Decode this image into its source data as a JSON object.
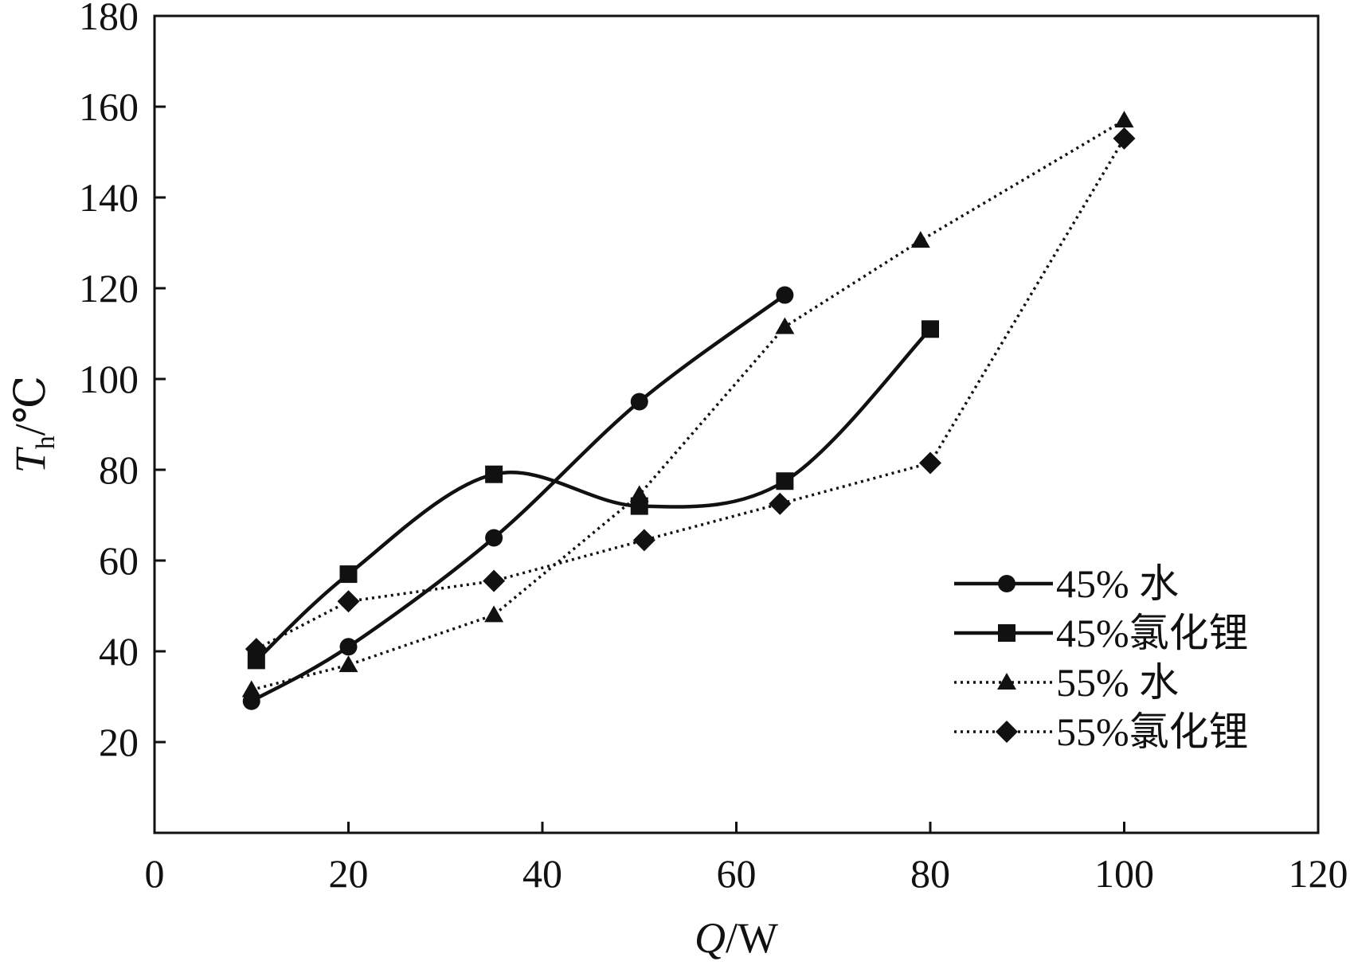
{
  "chart_data": {
    "type": "line",
    "xlabel": {
      "var": "Q",
      "unit": "/W"
    },
    "ylabel": {
      "var": "T",
      "sub": "h",
      "unit": "/℃"
    },
    "xlim": [
      0,
      120
    ],
    "ylim": [
      0,
      180
    ],
    "x_ticks": [
      0,
      20,
      40,
      60,
      80,
      100,
      120
    ],
    "y_ticks": [
      20,
      40,
      60,
      80,
      100,
      120,
      140,
      160,
      180
    ],
    "grid": false,
    "legend_position": "right",
    "series": [
      {
        "name": "45% 水",
        "marker": "circle",
        "line": "solid",
        "smooth": true,
        "x": [
          10,
          20,
          35,
          50,
          65
        ],
        "y": [
          29,
          41,
          65,
          95,
          118.5
        ]
      },
      {
        "name": "45%氯化锂",
        "marker": "square",
        "line": "solid",
        "smooth": true,
        "x": [
          10.5,
          20,
          35,
          50,
          65,
          80
        ],
        "y": [
          38,
          57,
          79,
          72,
          77.5,
          111
        ]
      },
      {
        "name": "55% 水",
        "marker": "triangle",
        "line": "dotted",
        "smooth": false,
        "x": [
          10,
          20,
          35,
          50,
          65,
          79,
          100
        ],
        "y": [
          31.5,
          37,
          48,
          74.5,
          111.5,
          130.5,
          157
        ]
      },
      {
        "name": "55%氯化锂",
        "marker": "diamond",
        "line": "dotted",
        "smooth": false,
        "x": [
          10.5,
          20,
          35,
          50.5,
          64.5,
          80,
          100
        ],
        "y": [
          40.5,
          51,
          55.5,
          64.5,
          72.5,
          81.5,
          153
        ]
      }
    ]
  }
}
